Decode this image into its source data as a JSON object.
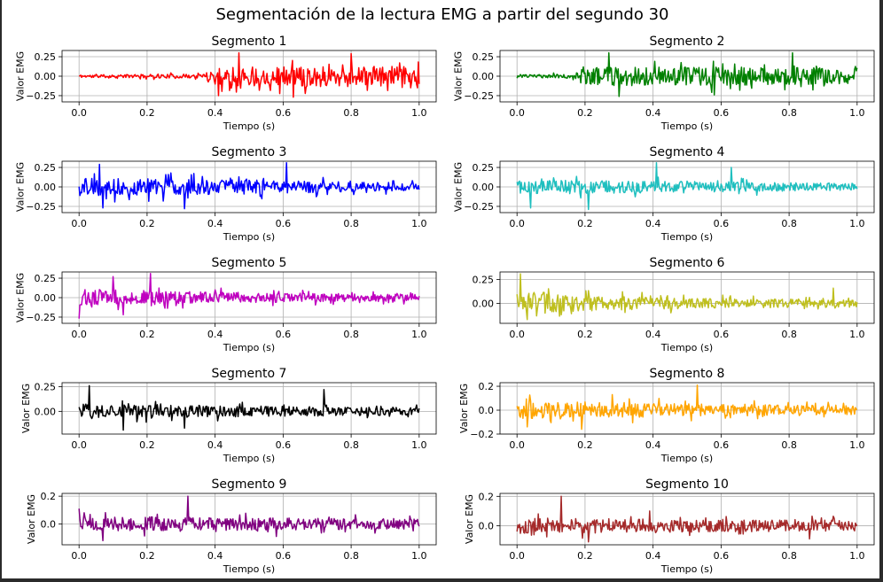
{
  "figure": {
    "title": "Segmentación de la lectura EMG a partir del segundo 30"
  },
  "chart_data": [
    {
      "type": "line",
      "title": "Segmento 1",
      "xlabel": "Tiempo (s)",
      "ylabel": "Valor EMG",
      "color": "#ff0000",
      "xlim": [
        -0.05,
        1.05
      ],
      "ylim": [
        -0.33,
        0.33
      ],
      "xticks": [
        0.0,
        0.2,
        0.4,
        0.6,
        0.8,
        1.0
      ],
      "xtick_labels": [
        "0.0",
        "0.2",
        "0.4",
        "0.6",
        "0.8",
        "1.0"
      ],
      "yticks": [
        -0.25,
        0.0,
        0.25
      ],
      "ytick_labels": [
        "−0.25",
        "0.00",
        "0.25"
      ],
      "grid": true,
      "seed": 11,
      "profile": [
        [
          0,
          0.02
        ],
        [
          0.37,
          0.03
        ],
        [
          0.39,
          0.14
        ],
        [
          1.0,
          0.14
        ]
      ],
      "peaks": [
        [
          0.47,
          0.3
        ],
        [
          0.41,
          -0.25
        ],
        [
          0.63,
          -0.27
        ],
        [
          0.8,
          0.29
        ]
      ]
    },
    {
      "type": "line",
      "title": "Segmento 2",
      "xlabel": "Tiempo (s)",
      "ylabel": "Valor EMG",
      "color": "#008000",
      "xlim": [
        -0.05,
        1.05
      ],
      "ylim": [
        -0.33,
        0.33
      ],
      "xticks": [
        0.0,
        0.2,
        0.4,
        0.6,
        0.8,
        1.0
      ],
      "xtick_labels": [
        "0.0",
        "0.2",
        "0.4",
        "0.6",
        "0.8",
        "1.0"
      ],
      "yticks": [
        -0.25,
        0.0,
        0.25
      ],
      "ytick_labels": [
        "−0.25",
        "0.00",
        "0.25"
      ],
      "grid": true,
      "seed": 23,
      "profile": [
        [
          0,
          0.02
        ],
        [
          0.17,
          0.03
        ],
        [
          0.19,
          0.14
        ],
        [
          1.0,
          0.12
        ]
      ],
      "peaks": [
        [
          0.27,
          0.3
        ],
        [
          0.3,
          -0.26
        ],
        [
          0.81,
          0.3
        ],
        [
          0.58,
          -0.24
        ]
      ]
    },
    {
      "type": "line",
      "title": "Segmento 3",
      "xlabel": "Tiempo (s)",
      "ylabel": "Valor EMG",
      "color": "#0000ff",
      "xlim": [
        -0.05,
        1.05
      ],
      "ylim": [
        -0.33,
        0.33
      ],
      "xticks": [
        0.0,
        0.2,
        0.4,
        0.6,
        0.8,
        1.0
      ],
      "xtick_labels": [
        "0.0",
        "0.2",
        "0.4",
        "0.6",
        "0.8",
        "1.0"
      ],
      "yticks": [
        -0.25,
        0.0,
        0.25
      ],
      "ytick_labels": [
        "−0.25",
        "0.00",
        "0.25"
      ],
      "grid": true,
      "seed": 37,
      "profile": [
        [
          0,
          0.13
        ],
        [
          0.5,
          0.1
        ],
        [
          1.0,
          0.05
        ]
      ],
      "peaks": [
        [
          0.06,
          0.29
        ],
        [
          0.61,
          0.31
        ],
        [
          0.31,
          -0.28
        ],
        [
          0.07,
          -0.27
        ]
      ]
    },
    {
      "type": "line",
      "title": "Segmento 4",
      "xlabel": "Tiempo (s)",
      "ylabel": "Valor EMG",
      "color": "#1fbfbf",
      "xlim": [
        -0.05,
        1.05
      ],
      "ylim": [
        -0.33,
        0.33
      ],
      "xticks": [
        0.0,
        0.2,
        0.4,
        0.6,
        0.8,
        1.0
      ],
      "xtick_labels": [
        "0.0",
        "0.2",
        "0.4",
        "0.6",
        "0.8",
        "1.0"
      ],
      "yticks": [
        -0.25,
        0.0,
        0.25
      ],
      "ytick_labels": [
        "−0.25",
        "0.00",
        "0.25"
      ],
      "grid": true,
      "seed": 41,
      "profile": [
        [
          0,
          0.1
        ],
        [
          0.5,
          0.08
        ],
        [
          1.0,
          0.05
        ]
      ],
      "peaks": [
        [
          0.41,
          0.31
        ],
        [
          0.04,
          -0.27
        ],
        [
          0.21,
          -0.29
        ],
        [
          0.63,
          0.25
        ]
      ]
    },
    {
      "type": "line",
      "title": "Segmento 5",
      "xlabel": "Tiempo (s)",
      "ylabel": "Valor EMG",
      "color": "#bf00bf",
      "xlim": [
        -0.05,
        1.05
      ],
      "ylim": [
        -0.33,
        0.33
      ],
      "xticks": [
        0.0,
        0.2,
        0.4,
        0.6,
        0.8,
        1.0
      ],
      "xtick_labels": [
        "0.0",
        "0.2",
        "0.4",
        "0.6",
        "0.8",
        "1.0"
      ],
      "yticks": [
        -0.25,
        0.0,
        0.25
      ],
      "ytick_labels": [
        "−0.25",
        "0.00",
        "0.25"
      ],
      "grid": true,
      "seed": 53,
      "profile": [
        [
          0,
          0.12
        ],
        [
          0.5,
          0.07
        ],
        [
          1.0,
          0.05
        ]
      ],
      "peaks": [
        [
          0.21,
          0.31
        ],
        [
          0.0,
          -0.27
        ],
        [
          0.13,
          -0.22
        ],
        [
          0.1,
          0.27
        ]
      ]
    },
    {
      "type": "line",
      "title": "Segmento 6",
      "xlabel": "Tiempo (s)",
      "ylabel": "",
      "color": "#bfbf1f",
      "xlim": [
        -0.05,
        1.05
      ],
      "ylim": [
        -0.21,
        0.33
      ],
      "xticks": [
        0.0,
        0.2,
        0.4,
        0.6,
        0.8,
        1.0
      ],
      "xtick_labels": [
        "0.0",
        "0.2",
        "0.4",
        "0.6",
        "0.8",
        "1.0"
      ],
      "yticks": [
        0.0,
        0.25
      ],
      "ytick_labels": [
        "0.00",
        "0.25"
      ],
      "grid": true,
      "seed": 67,
      "profile": [
        [
          0,
          0.11
        ],
        [
          0.5,
          0.06
        ],
        [
          1.0,
          0.04
        ]
      ],
      "peaks": [
        [
          0.01,
          0.31
        ],
        [
          0.03,
          -0.17
        ],
        [
          0.93,
          0.16
        ],
        [
          0.13,
          -0.12
        ]
      ]
    },
    {
      "type": "line",
      "title": "Segmento 7",
      "xlabel": "Tiempo (s)",
      "ylabel": "Valor EMG",
      "color": "#000000",
      "xlim": [
        -0.05,
        1.05
      ],
      "ylim": [
        -0.23,
        0.29
      ],
      "xticks": [
        0.0,
        0.2,
        0.4,
        0.6,
        0.8,
        1.0
      ],
      "xtick_labels": [
        "0.0",
        "0.2",
        "0.4",
        "0.6",
        "0.8",
        "1.0"
      ],
      "yticks": [
        0.0,
        0.25
      ],
      "ytick_labels": [
        "0.00",
        "0.25"
      ],
      "grid": true,
      "seed": 71,
      "profile": [
        [
          0,
          0.09
        ],
        [
          0.5,
          0.06
        ],
        [
          1.0,
          0.04
        ]
      ],
      "peaks": [
        [
          0.03,
          0.26
        ],
        [
          0.72,
          0.22
        ],
        [
          0.13,
          -0.19
        ],
        [
          0.31,
          -0.17
        ]
      ]
    },
    {
      "type": "line",
      "title": "Segmento 8",
      "xlabel": "Tiempo (s)",
      "ylabel": "Valor EMG",
      "color": "#ffa500",
      "xlim": [
        -0.05,
        1.05
      ],
      "ylim": [
        -0.2,
        0.23
      ],
      "xticks": [
        0.0,
        0.2,
        0.4,
        0.6,
        0.8,
        1.0
      ],
      "xtick_labels": [
        "0.0",
        "0.2",
        "0.4",
        "0.6",
        "0.8",
        "1.0"
      ],
      "yticks": [
        -0.2,
        0.0,
        0.2
      ],
      "ytick_labels": [
        "−0.2",
        "0.0",
        "0.2"
      ],
      "grid": true,
      "seed": 83,
      "profile": [
        [
          0,
          0.09
        ],
        [
          0.5,
          0.06
        ],
        [
          1.0,
          0.04
        ]
      ],
      "peaks": [
        [
          0.53,
          0.21
        ],
        [
          0.19,
          -0.16
        ],
        [
          0.03,
          -0.14
        ],
        [
          0.28,
          0.13
        ]
      ]
    },
    {
      "type": "line",
      "title": "Segmento 9",
      "xlabel": "Tiempo (s)",
      "ylabel": "Valor EMG",
      "color": "#800080",
      "xlim": [
        -0.05,
        1.05
      ],
      "ylim": [
        -0.15,
        0.22
      ],
      "xticks": [
        0.0,
        0.2,
        0.4,
        0.6,
        0.8,
        1.0
      ],
      "xtick_labels": [
        "0.0",
        "0.2",
        "0.4",
        "0.6",
        "0.8",
        "1.0"
      ],
      "yticks": [
        0.0,
        0.2
      ],
      "ytick_labels": [
        "0.0",
        "0.2"
      ],
      "grid": true,
      "seed": 97,
      "profile": [
        [
          0,
          0.06
        ],
        [
          0.5,
          0.05
        ],
        [
          1.0,
          0.04
        ]
      ],
      "peaks": [
        [
          0.32,
          0.2
        ],
        [
          0.07,
          -0.12
        ],
        [
          0.0,
          0.11
        ],
        [
          0.58,
          -0.09
        ]
      ]
    },
    {
      "type": "line",
      "title": "Segmento 10",
      "xlabel": "Tiempo (s)",
      "ylabel": "Valor EMG",
      "color": "#a52a2a",
      "xlim": [
        -0.05,
        1.05
      ],
      "ylim": [
        -0.13,
        0.22
      ],
      "xticks": [
        0.0,
        0.2,
        0.4,
        0.6,
        0.8,
        1.0
      ],
      "xtick_labels": [
        "0.0",
        "0.2",
        "0.4",
        "0.6",
        "0.8",
        "1.0"
      ],
      "yticks": [
        0.0,
        0.2
      ],
      "ytick_labels": [
        "0.0",
        "0.2"
      ],
      "grid": true,
      "seed": 101,
      "profile": [
        [
          0,
          0.06
        ],
        [
          0.5,
          0.05
        ],
        [
          1.0,
          0.04
        ]
      ],
      "peaks": [
        [
          0.13,
          0.2
        ],
        [
          0.21,
          -0.11
        ],
        [
          0.39,
          0.1
        ],
        [
          0.86,
          -0.09
        ]
      ]
    }
  ]
}
